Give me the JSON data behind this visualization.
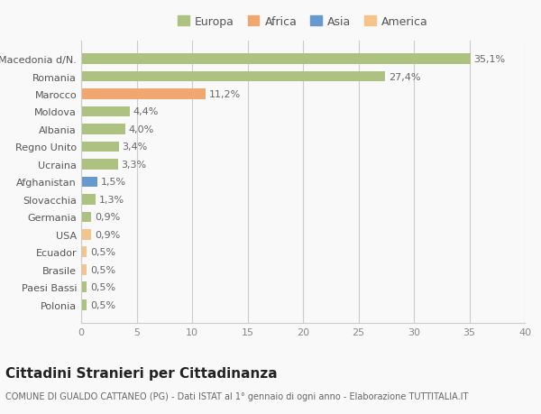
{
  "categories": [
    "Polonia",
    "Paesi Bassi",
    "Brasile",
    "Ecuador",
    "USA",
    "Germania",
    "Slovacchia",
    "Afghanistan",
    "Ucraina",
    "Regno Unito",
    "Albania",
    "Moldova",
    "Marocco",
    "Romania",
    "Macedonia d/N."
  ],
  "values": [
    0.5,
    0.5,
    0.5,
    0.5,
    0.9,
    0.9,
    1.3,
    1.5,
    3.3,
    3.4,
    4.0,
    4.4,
    11.2,
    27.4,
    35.1
  ],
  "colors": [
    "#adc180",
    "#adc180",
    "#f5c48a",
    "#f5c48a",
    "#f5c48a",
    "#adc180",
    "#adc180",
    "#6699cc",
    "#adc180",
    "#adc180",
    "#adc180",
    "#adc180",
    "#f0a870",
    "#adc180",
    "#adc180"
  ],
  "labels": [
    "0,5%",
    "0,5%",
    "0,5%",
    "0,5%",
    "0,9%",
    "0,9%",
    "1,3%",
    "1,5%",
    "3,3%",
    "3,4%",
    "4,0%",
    "4,4%",
    "11,2%",
    "27,4%",
    "35,1%"
  ],
  "legend_labels": [
    "Europa",
    "Africa",
    "Asia",
    "America"
  ],
  "legend_colors": [
    "#adc180",
    "#f0a870",
    "#6699cc",
    "#f5c48a"
  ],
  "xlim": [
    0,
    40
  ],
  "xticks": [
    0,
    5,
    10,
    15,
    20,
    25,
    30,
    35,
    40
  ],
  "title": "Cittadini Stranieri per Cittadinanza",
  "subtitle": "COMUNE DI GUALDO CATTANEO (PG) - Dati ISTAT al 1° gennaio di ogni anno - Elaborazione TUTTITALIA.IT",
  "bg_color": "#f9f9f9",
  "grid_color": "#cccccc",
  "bar_height": 0.6,
  "title_fontsize": 11,
  "subtitle_fontsize": 7,
  "label_fontsize": 8,
  "tick_fontsize": 8,
  "legend_fontsize": 9
}
